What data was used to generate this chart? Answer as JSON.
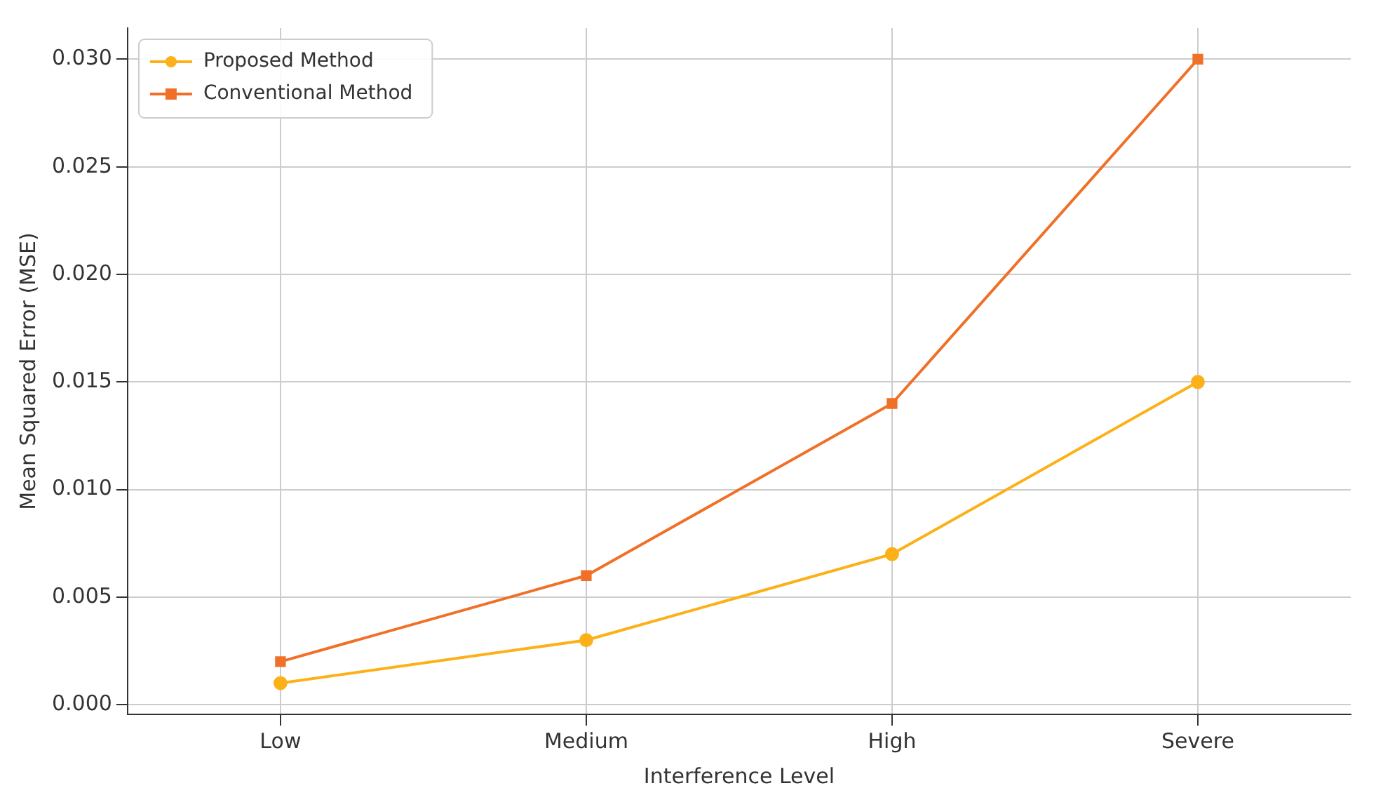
{
  "chart_data": {
    "type": "line",
    "xlabel": "Interference Level",
    "ylabel": "Mean Squared Error (MSE)",
    "categories": [
      "Low",
      "Medium",
      "High",
      "Severe"
    ],
    "series": [
      {
        "name": "Proposed Method",
        "color": "#fbb117",
        "marker": "circle",
        "values": [
          0.001,
          0.003,
          0.007,
          0.015
        ]
      },
      {
        "name": "Conventional Method",
        "color": "#f07028",
        "marker": "square",
        "values": [
          0.002,
          0.006,
          0.014,
          0.03
        ]
      }
    ],
    "ylim": [
      -0.00045,
      0.03145
    ],
    "yticks": [
      {
        "value": 0,
        "label": "0.000"
      },
      {
        "value": 0.005,
        "label": "0.005"
      },
      {
        "value": 0.01,
        "label": "0.010"
      },
      {
        "value": 0.015,
        "label": "0.015"
      },
      {
        "value": 0.02,
        "label": "0.020"
      },
      {
        "value": 0.025,
        "label": "0.025"
      },
      {
        "value": 0.03,
        "label": "0.030"
      }
    ],
    "grid": true,
    "legend": "top left",
    "line_style": "solid"
  }
}
